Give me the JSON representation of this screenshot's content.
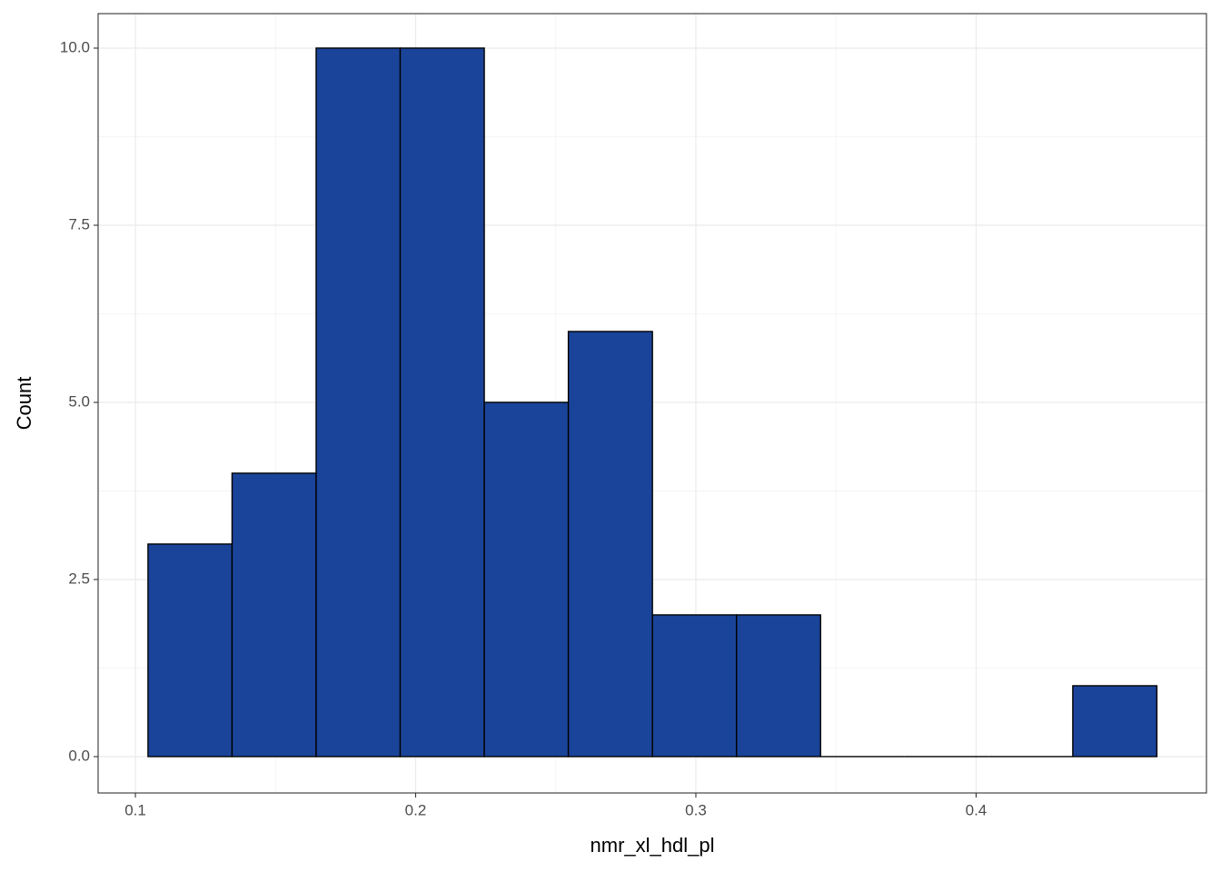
{
  "chart_data": {
    "type": "histogram",
    "x_label": "nmr_xl_hdl_pl",
    "y_label": "Count",
    "bins": [
      0.1045,
      0.1345,
      0.1645,
      0.1945,
      0.2245,
      0.2545,
      0.2845,
      0.3145,
      0.3445,
      0.3745,
      0.4045,
      0.4345,
      0.4645
    ],
    "values": [
      3,
      4,
      10,
      10,
      5,
      6,
      2,
      2,
      0,
      0,
      0,
      1
    ],
    "color": "#1a4499",
    "xlim": [
      0.0867,
      0.4822
    ],
    "ylim": [
      -0.513,
      10.487
    ],
    "xticks": [
      0.1,
      0.2,
      0.3,
      0.4
    ],
    "yticks": [
      {
        "value": 0,
        "label": "0.0"
      },
      {
        "value": 2.5,
        "label": "2.5"
      },
      {
        "value": 5,
        "label": "5.0"
      },
      {
        "value": 7.5,
        "label": "7.5"
      },
      {
        "value": 10,
        "label": "10.0"
      }
    ],
    "grid": true
  }
}
